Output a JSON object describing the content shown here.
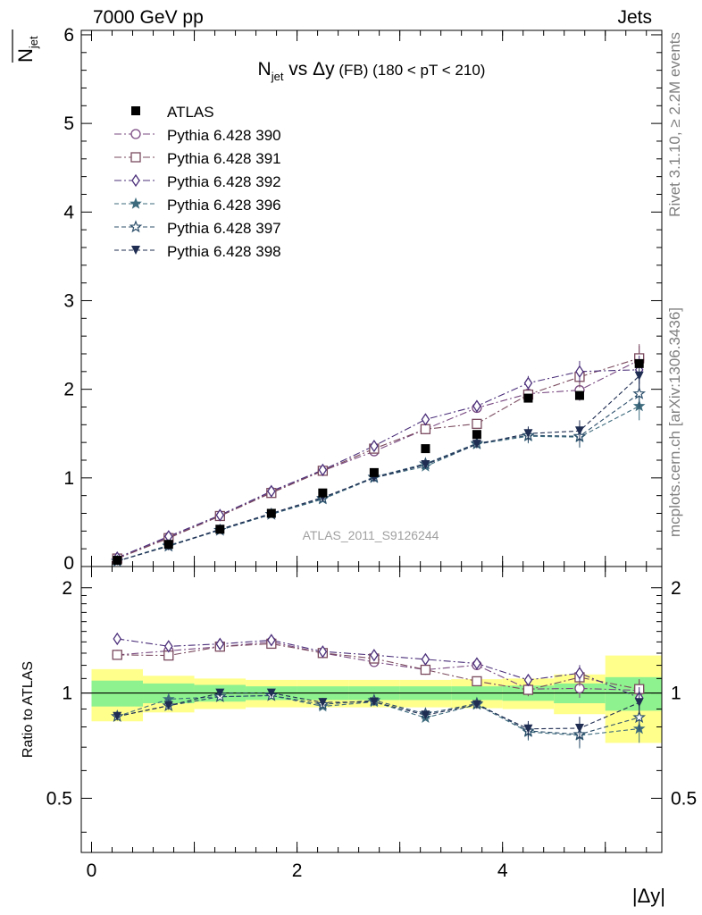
{
  "header": {
    "left": "7000 GeV pp",
    "right": "Jets"
  },
  "side_texts": {
    "rivet": "Rivet 3.1.10, ≥ 2.2M events",
    "mcplots": "mcplots.cern.ch [arXiv:1306.3436]"
  },
  "watermark": "ATLAS_2011_S9126244",
  "chart_data": {
    "type": "scatter",
    "title": "N_jet vs Δy (FB) (180 < pT < 210)",
    "ylabel_main": "N_jet (overline)",
    "ylabel_ratio": "Ratio to ATLAS",
    "xlabel": "|Δy|",
    "xlim": [
      -0.1,
      5.55
    ],
    "ylim_main": [
      0,
      6.05
    ],
    "ylim_ratio": [
      0.35,
      2.3
    ],
    "x_ticks": [
      "0",
      "2",
      "4"
    ],
    "y_ticks_main": [
      "0",
      "1",
      "2",
      "3",
      "4",
      "5",
      "6"
    ],
    "y_ticks_ratio": [
      "0.5",
      "1",
      "2"
    ],
    "x": [
      0.25,
      0.75,
      1.25,
      1.75,
      2.25,
      2.75,
      3.25,
      3.75,
      4.25,
      4.75,
      5.33
    ],
    "data": {
      "name": "ATLAS",
      "values": [
        0.07,
        0.25,
        0.42,
        0.6,
        0.83,
        1.06,
        1.33,
        1.49,
        1.9,
        1.93,
        2.29
      ]
    },
    "bands": {
      "edges": [
        0,
        0.5,
        1.0,
        1.5,
        2.0,
        2.5,
        3.0,
        3.5,
        4.0,
        4.5,
        5.0,
        5.55
      ],
      "green_half": [
        0.085,
        0.065,
        0.055,
        0.045,
        0.045,
        0.045,
        0.045,
        0.045,
        0.05,
        0.065,
        0.11
      ],
      "yellow_half": [
        0.17,
        0.12,
        0.1,
        0.09,
        0.09,
        0.09,
        0.09,
        0.095,
        0.1,
        0.13,
        0.28
      ]
    },
    "series": [
      {
        "name": "Pythia 6.428 390",
        "color": "#7a4a82",
        "marker": "circle-open",
        "dash": "8,3,2,3",
        "values": [
          0.09,
          0.33,
          0.57,
          0.84,
          1.08,
          1.3,
          1.55,
          1.79,
          1.95,
          1.99,
          2.33
        ]
      },
      {
        "name": "Pythia 6.428 391",
        "color": "#7a4a5e",
        "marker": "square-open",
        "dash": "8,3,2,3",
        "values": [
          0.09,
          0.32,
          0.57,
          0.83,
          1.08,
          1.33,
          1.55,
          1.61,
          1.94,
          2.14,
          2.35
        ]
      },
      {
        "name": "Pythia 6.428 392",
        "color": "#4b2f7a",
        "marker": "diamond-open",
        "dash": "8,3,2,3",
        "values": [
          0.1,
          0.34,
          0.58,
          0.85,
          1.09,
          1.36,
          1.66,
          1.81,
          2.07,
          2.2,
          2.22
        ]
      },
      {
        "name": "Pythia 6.428 396",
        "color": "#3d6b7d",
        "marker": "star-filled",
        "dash": "5,3",
        "values": [
          0.06,
          0.24,
          0.41,
          0.59,
          0.76,
          1.0,
          1.13,
          1.38,
          1.47,
          1.46,
          1.81
        ]
      },
      {
        "name": "Pythia 6.428 397",
        "color": "#2c4f6b",
        "marker": "star-open",
        "dash": "5,3",
        "values": [
          0.06,
          0.23,
          0.41,
          0.59,
          0.77,
          1.01,
          1.16,
          1.39,
          1.48,
          1.47,
          1.95
        ]
      },
      {
        "name": "Pythia 6.428 398",
        "color": "#1f2d52",
        "marker": "triangle-down-filled",
        "dash": "5,3",
        "values": [
          0.06,
          0.23,
          0.42,
          0.6,
          0.78,
          1.0,
          1.15,
          1.38,
          1.5,
          1.53,
          2.15
        ]
      }
    ]
  }
}
